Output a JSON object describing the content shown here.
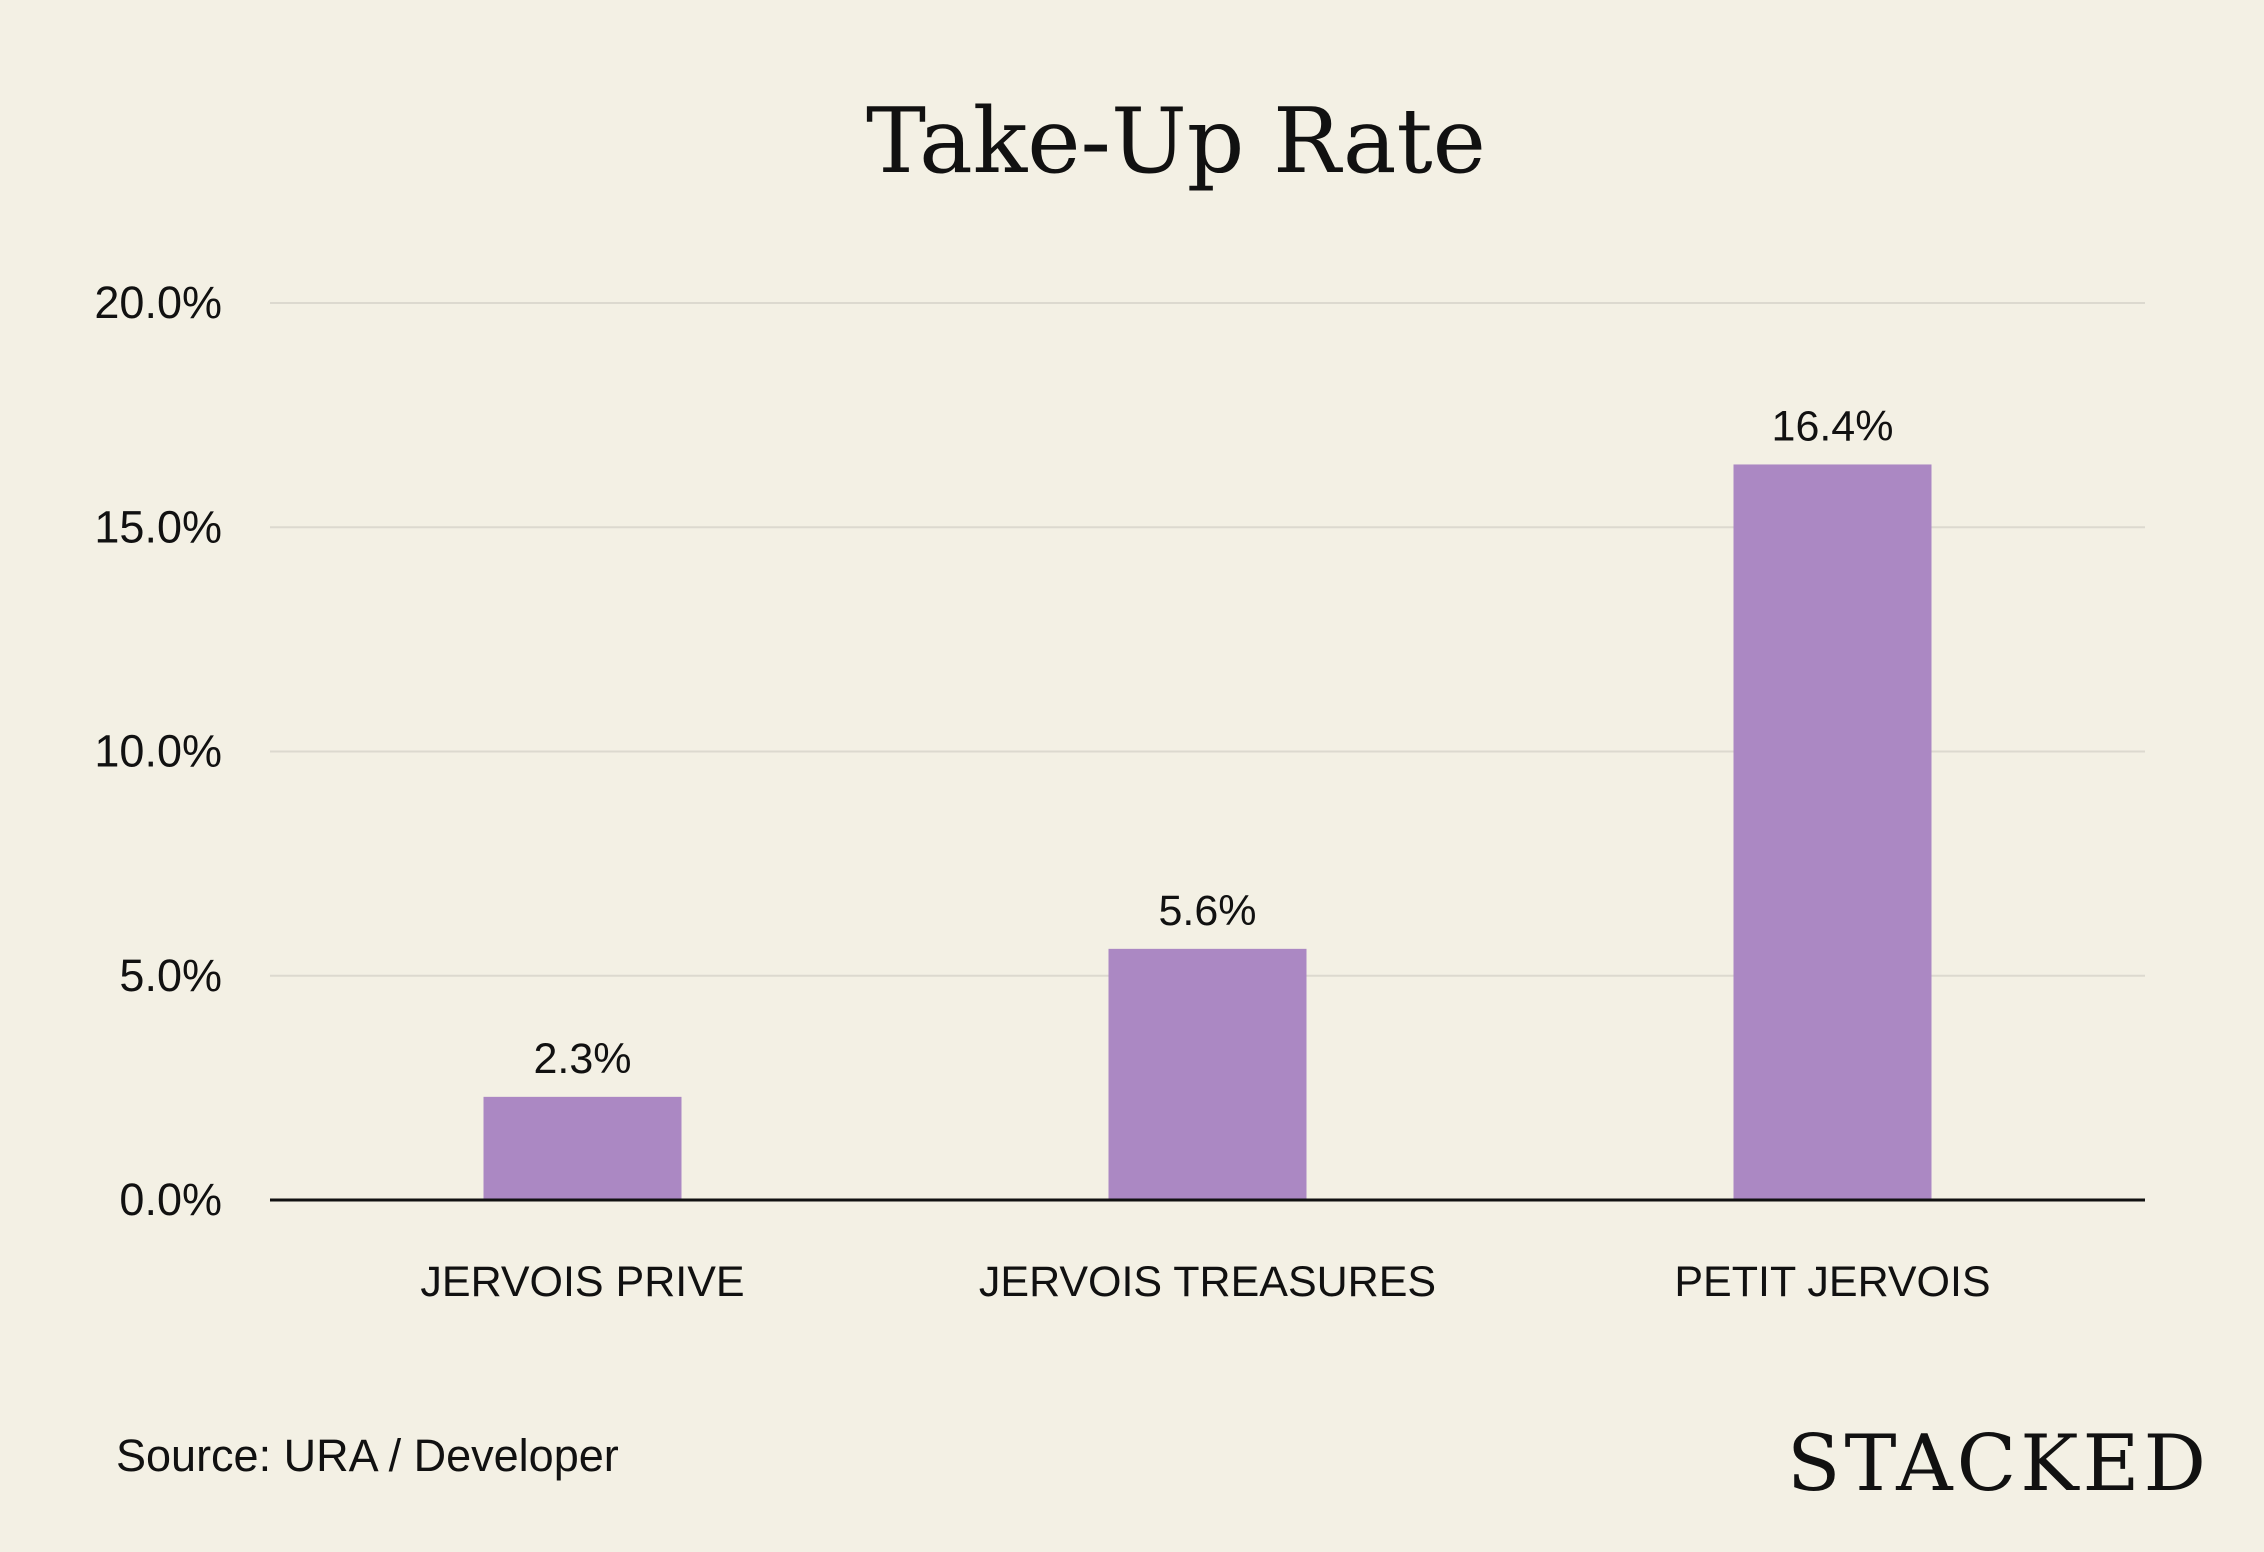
{
  "background_color": "#f3f0e4",
  "bar_color": "#ab88c3",
  "text_color": "#111111",
  "gridline_color": "#dcd9cf",
  "axis_color": "#111111",
  "chart_data": {
    "type": "bar",
    "title": "Take-Up Rate",
    "xlabel": "",
    "ylabel": "",
    "categories": [
      "JERVOIS PRIVE",
      "JERVOIS TREASURES",
      "PETIT JERVOIS"
    ],
    "values": [
      2.3,
      5.6,
      16.4
    ],
    "data_labels": [
      "2.3%",
      "5.6%",
      "16.4%"
    ],
    "ylim": [
      0,
      20
    ],
    "y_ticks": [
      0,
      5,
      10,
      15,
      20
    ],
    "y_tick_labels": [
      "0.0%",
      "5.0%",
      "10.0%",
      "15.0%",
      "20.0%"
    ],
    "grid": true,
    "legend": "none"
  },
  "footer": {
    "source": "Source: URA / Developer",
    "brand": "STACKED"
  }
}
